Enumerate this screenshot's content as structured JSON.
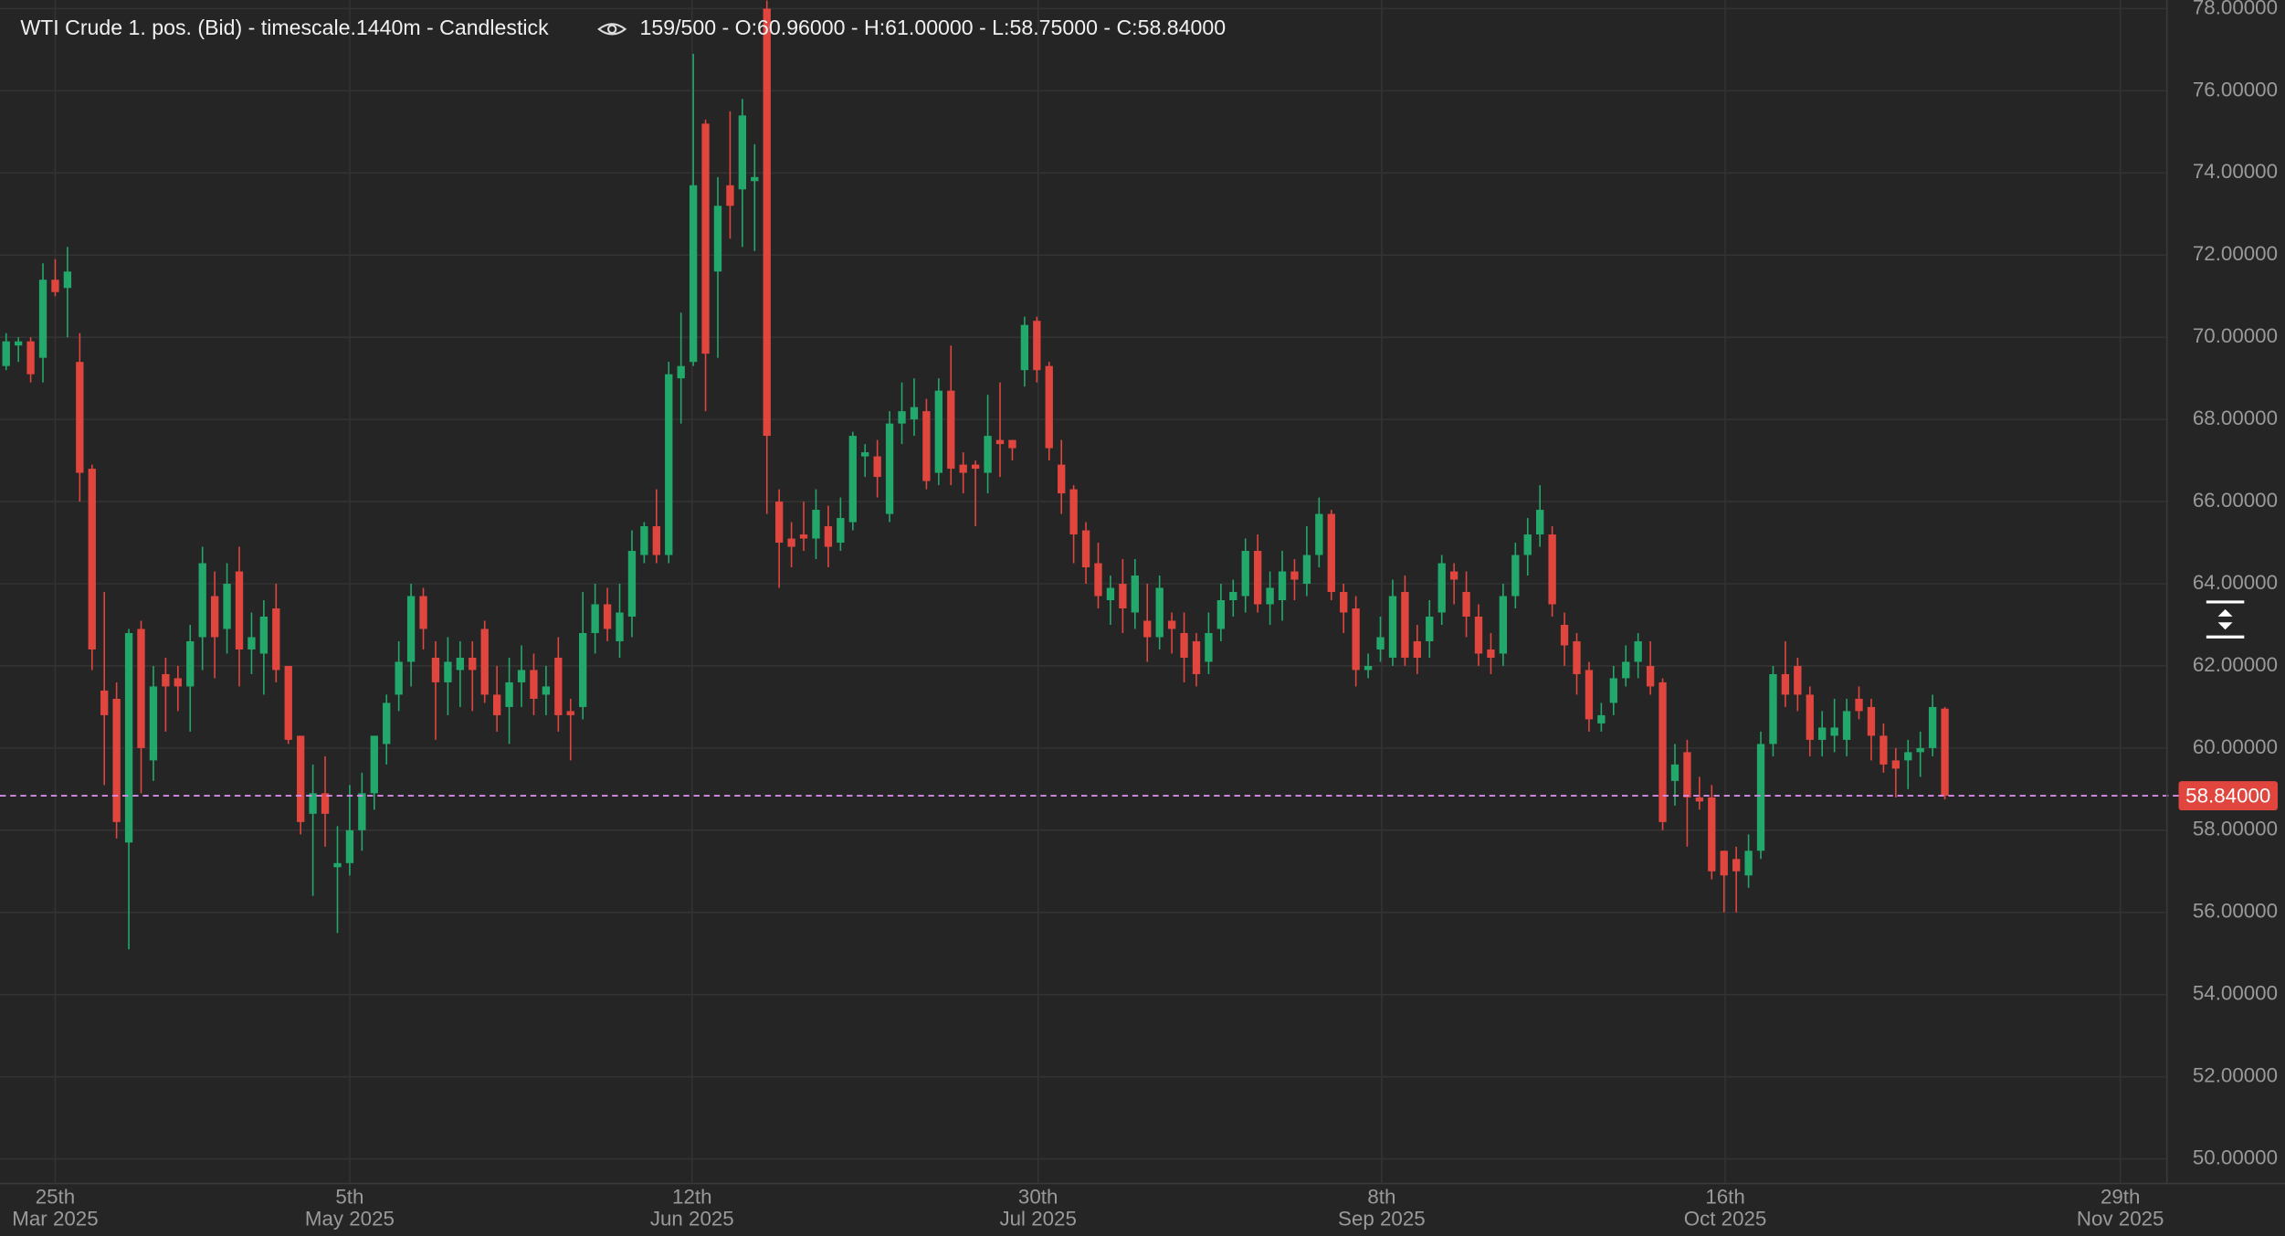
{
  "chart_data": {
    "type": "candlestick",
    "title": "WTI Crude 1. pos. (Bid) - timescale.1440m - Candlestick",
    "info": "159/500 - O:60.96000 - H:61.00000 - L:58.75000 - C:58.84000",
    "up_color": "#23a86b",
    "down_color": "#e0453e",
    "background": "#252525",
    "grid": true,
    "open": [
      69.3,
      69.8,
      69.9,
      69.5,
      71.4,
      71.2,
      69.4,
      66.8,
      61.4,
      61.2,
      57.7,
      62.9,
      59.7,
      61.8,
      61.7,
      61.5,
      62.7,
      63.7,
      62.9,
      64.3,
      62.4,
      62.3,
      63.4,
      62.0,
      60.3,
      58.4,
      58.9,
      57.1,
      57.2,
      58.0,
      58.9,
      60.1,
      61.3,
      62.1,
      63.7,
      62.2,
      61.6,
      61.9,
      62.2,
      62.9,
      61.3,
      61.0,
      61.6,
      61.9,
      61.3,
      62.2,
      60.9,
      61.0,
      62.8,
      63.5,
      62.6,
      63.2,
      64.7,
      65.4,
      64.7,
      69.0,
      69.4,
      75.2,
      71.6,
      73.7,
      73.6,
      73.8,
      78.0,
      66.0,
      65.1,
      65.2,
      65.1,
      65.4,
      65.0,
      65.5,
      67.1,
      67.1,
      65.7,
      67.9,
      68.0,
      68.2,
      66.7,
      68.7,
      66.9,
      66.9,
      66.7,
      67.5,
      67.5,
      69.2,
      70.4,
      69.3,
      66.9,
      66.3,
      65.3,
      64.5,
      63.6,
      64.0,
      63.3,
      63.1,
      62.7,
      63.1,
      62.8,
      62.6,
      62.1,
      62.9,
      63.6,
      63.7,
      64.8,
      63.5,
      63.6,
      64.3,
      64.0,
      64.7,
      65.7,
      63.8,
      63.4,
      61.9,
      62.4,
      62.2,
      63.8,
      62.6,
      62.6,
      63.3,
      64.3,
      63.8,
      63.2,
      62.4,
      62.3,
      63.7,
      64.7,
      65.2,
      65.2,
      63.0,
      62.6,
      61.9,
      60.6,
      61.1,
      61.7,
      62.1,
      62.0,
      61.6,
      59.2,
      59.9,
      58.8,
      58.8,
      57.5,
      57.3,
      56.9,
      57.5,
      60.1,
      61.8,
      62.0,
      61.3,
      60.2,
      60.3,
      60.2,
      61.2,
      61.0,
      60.3,
      59.7,
      59.7,
      59.9,
      60.0,
      60.96
    ],
    "high": [
      70.1,
      70.0,
      70.0,
      71.8,
      71.9,
      72.2,
      70.1,
      66.9,
      63.8,
      61.6,
      62.9,
      63.1,
      62.0,
      62.2,
      62.0,
      63.0,
      64.9,
      64.3,
      64.5,
      64.9,
      63.3,
      63.6,
      64.0,
      62.0,
      60.3,
      59.6,
      59.8,
      58.1,
      59.1,
      59.4,
      60.3,
      61.3,
      62.6,
      64.0,
      63.9,
      62.6,
      62.7,
      62.6,
      62.6,
      63.1,
      62.0,
      62.2,
      62.5,
      62.3,
      62.0,
      62.7,
      61.2,
      63.8,
      64.0,
      63.9,
      64.0,
      65.3,
      65.5,
      66.3,
      69.4,
      70.6,
      76.9,
      75.3,
      73.9,
      75.5,
      75.8,
      74.7,
      78.2,
      66.3,
      65.5,
      66.0,
      66.3,
      65.9,
      66.1,
      67.7,
      67.4,
      67.5,
      68.2,
      68.9,
      69.0,
      68.5,
      69.0,
      69.8,
      67.2,
      67.0,
      68.6,
      68.9,
      67.5,
      70.5,
      70.5,
      69.4,
      67.5,
      66.4,
      65.5,
      65.0,
      64.2,
      64.6,
      64.6,
      64.0,
      64.2,
      63.3,
      63.3,
      62.8,
      63.3,
      64.0,
      64.1,
      65.1,
      65.2,
      64.3,
      64.8,
      64.6,
      65.4,
      66.1,
      65.8,
      64.0,
      63.7,
      62.3,
      63.2,
      64.1,
      64.2,
      63.0,
      63.6,
      64.7,
      64.5,
      64.3,
      63.5,
      62.8,
      64.0,
      65.0,
      65.6,
      66.4,
      65.4,
      63.3,
      62.8,
      62.1,
      61.1,
      62.0,
      62.5,
      62.8,
      62.6,
      61.7,
      60.1,
      60.2,
      59.3,
      59.1,
      57.5,
      57.6,
      57.9,
      60.4,
      62.0,
      62.6,
      62.2,
      61.5,
      60.9,
      61.2,
      61.2,
      61.5,
      61.2,
      60.6,
      60.0,
      60.2,
      60.4,
      61.3,
      61.0
    ],
    "low": [
      69.2,
      69.4,
      68.9,
      68.9,
      71.0,
      70.0,
      66.0,
      61.9,
      59.1,
      57.8,
      55.1,
      58.9,
      59.2,
      60.4,
      60.9,
      60.4,
      61.9,
      61.7,
      62.3,
      61.5,
      61.8,
      61.3,
      61.6,
      60.1,
      57.9,
      56.4,
      57.6,
      55.5,
      56.9,
      57.5,
      58.5,
      59.6,
      60.9,
      61.5,
      62.4,
      60.2,
      60.8,
      61.0,
      60.9,
      61.1,
      60.4,
      60.1,
      61.0,
      60.8,
      60.8,
      60.4,
      59.7,
      60.7,
      62.3,
      62.6,
      62.2,
      62.7,
      64.5,
      64.5,
      64.5,
      67.9,
      69.3,
      68.2,
      69.5,
      72.4,
      72.2,
      72.1,
      65.7,
      63.9,
      64.4,
      64.8,
      64.6,
      64.4,
      64.8,
      65.3,
      66.6,
      66.1,
      65.5,
      67.4,
      67.6,
      66.3,
      66.4,
      66.4,
      66.2,
      65.4,
      66.2,
      66.6,
      67.0,
      68.8,
      68.9,
      67.0,
      65.7,
      64.5,
      64.0,
      63.4,
      63.0,
      62.8,
      62.9,
      62.1,
      62.4,
      62.3,
      61.6,
      61.5,
      61.8,
      62.6,
      63.2,
      63.3,
      63.3,
      63.0,
      63.1,
      63.6,
      63.7,
      64.4,
      63.6,
      62.8,
      61.5,
      61.7,
      62.1,
      62.0,
      62.0,
      61.8,
      62.2,
      63.0,
      63.5,
      62.7,
      62.0,
      61.8,
      62.0,
      63.4,
      64.2,
      64.9,
      63.2,
      62.0,
      61.3,
      60.4,
      60.4,
      60.8,
      61.5,
      61.7,
      61.3,
      58.0,
      58.6,
      57.6,
      58.5,
      56.8,
      56.0,
      56.0,
      56.6,
      57.3,
      59.8,
      61.0,
      60.9,
      59.8,
      59.8,
      59.9,
      59.8,
      60.7,
      59.7,
      59.4,
      58.8,
      59.0,
      59.3,
      59.8,
      58.75
    ],
    "close": [
      69.9,
      69.9,
      69.1,
      71.4,
      71.1,
      71.6,
      66.7,
      62.4,
      60.8,
      58.2,
      62.8,
      60.0,
      61.5,
      61.5,
      61.5,
      62.6,
      64.5,
      62.7,
      64.0,
      62.4,
      62.7,
      63.2,
      61.9,
      60.2,
      58.2,
      58.9,
      58.4,
      57.2,
      58.0,
      58.9,
      60.3,
      61.1,
      62.1,
      63.7,
      62.9,
      61.6,
      62.1,
      62.2,
      61.9,
      61.3,
      60.8,
      61.6,
      61.9,
      61.2,
      61.5,
      60.8,
      60.8,
      62.8,
      63.5,
      62.9,
      63.3,
      64.8,
      65.4,
      64.7,
      69.1,
      69.3,
      73.7,
      69.6,
      73.2,
      73.2,
      75.4,
      73.9,
      67.6,
      65.0,
      64.9,
      65.1,
      65.8,
      64.9,
      65.6,
      67.6,
      67.2,
      66.6,
      67.9,
      68.2,
      68.3,
      66.5,
      68.7,
      66.8,
      66.7,
      66.8,
      67.6,
      67.4,
      67.3,
      70.3,
      69.2,
      67.3,
      66.2,
      65.2,
      64.4,
      63.7,
      63.9,
      63.4,
      64.2,
      62.7,
      63.9,
      62.9,
      62.2,
      61.8,
      62.8,
      63.6,
      63.8,
      64.8,
      63.5,
      63.9,
      64.3,
      64.1,
      64.7,
      65.7,
      63.8,
      63.3,
      61.9,
      62.0,
      62.7,
      63.7,
      62.2,
      62.2,
      63.2,
      64.5,
      64.1,
      63.2,
      62.3,
      62.2,
      63.7,
      64.7,
      65.2,
      65.8,
      63.5,
      62.5,
      61.8,
      60.7,
      60.8,
      61.7,
      62.1,
      62.6,
      61.5,
      58.2,
      59.6,
      58.8,
      58.7,
      57.0,
      56.9,
      57.0,
      57.5,
      60.1,
      61.8,
      61.3,
      61.3,
      60.2,
      60.5,
      60.5,
      60.9,
      60.9,
      60.3,
      59.6,
      59.5,
      59.9,
      60.0,
      61.0,
      58.84
    ],
    "xlim": [
      -0.5,
      176.1
    ],
    "xticks": [
      {
        "value": 4.0,
        "label": "25th"
      },
      {
        "value": 28.0,
        "label": "5th"
      },
      {
        "value": 55.9,
        "label": "12th"
      },
      {
        "value": 84.1,
        "label": "30th"
      },
      {
        "value": 112.1,
        "label": "8th"
      },
      {
        "value": 140.1,
        "label": "16th"
      },
      {
        "value": 172.3,
        "label": "29th"
      }
    ],
    "xtick_sublabels": [
      "Mar 2025",
      "May 2025",
      "Jun 2025",
      "Jul 2025",
      "Sep 2025",
      "Oct 2025",
      "Nov 2025"
    ],
    "ylim": [
      49.4,
      78.21
    ],
    "yticks": [
      {
        "value": 50,
        "label": "50.00000"
      },
      {
        "value": 52,
        "label": "52.00000"
      },
      {
        "value": 54,
        "label": "54.00000"
      },
      {
        "value": 56,
        "label": "56.00000"
      },
      {
        "value": 58,
        "label": "58.00000"
      },
      {
        "value": 60,
        "label": "60.00000"
      },
      {
        "value": 62,
        "label": "62.00000"
      },
      {
        "value": 64,
        "label": "64.00000"
      },
      {
        "value": 66,
        "label": "66.00000"
      },
      {
        "value": 68,
        "label": "68.00000"
      },
      {
        "value": 70,
        "label": "70.00000"
      },
      {
        "value": 72,
        "label": "72.00000"
      },
      {
        "value": 74,
        "label": "74.00000"
      },
      {
        "value": 76,
        "label": "76.00000"
      },
      {
        "value": 78,
        "label": "78.00000"
      }
    ],
    "last_price": {
      "value": 58.84,
      "label": "58.84000",
      "color": "#d68be8",
      "label_color": "#e0453e"
    }
  }
}
